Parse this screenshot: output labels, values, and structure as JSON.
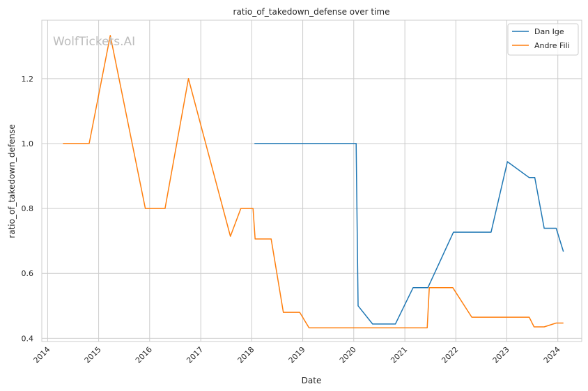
{
  "watermark": "WolfTickets.AI",
  "chart_data": {
    "type": "line",
    "title": "ratio_of_takedown_defense over time",
    "xlabel": "Date",
    "ylabel": "ratio_of_takedown_defense",
    "xlim": [
      "2013-11-20",
      "2024-06-20"
    ],
    "ylim": [
      0.39,
      1.38
    ],
    "x_ticks": [
      "2014-01-01",
      "2015-01-01",
      "2016-01-01",
      "2017-01-01",
      "2018-01-01",
      "2019-01-01",
      "2020-01-01",
      "2021-01-01",
      "2022-01-01",
      "2023-01-01",
      "2024-01-01"
    ],
    "x_tick_labels": [
      "2014",
      "2015",
      "2016",
      "2017",
      "2018",
      "2019",
      "2020",
      "2021",
      "2022",
      "2023",
      "2024"
    ],
    "y_ticks": [
      0.4,
      0.6,
      0.8,
      1.0,
      1.2
    ],
    "y_tick_labels": [
      "0.4",
      "0.6",
      "0.8",
      "1.0",
      "1.2"
    ],
    "grid": true,
    "legend_position": "top-right",
    "series": [
      {
        "name": "Dan Ige",
        "color": "#1f77b4",
        "points": [
          [
            "2018-01-20",
            1.0
          ],
          [
            "2020-01-18",
            1.0
          ],
          [
            "2020-02-01",
            0.5
          ],
          [
            "2020-05-15",
            0.444
          ],
          [
            "2020-10-25",
            0.444
          ],
          [
            "2021-03-01",
            0.556
          ],
          [
            "2021-06-15",
            0.556
          ],
          [
            "2021-12-15",
            0.727
          ],
          [
            "2022-09-10",
            0.727
          ],
          [
            "2023-01-05",
            0.944
          ],
          [
            "2023-06-10",
            0.895
          ],
          [
            "2023-07-20",
            0.895
          ],
          [
            "2023-09-25",
            0.739
          ],
          [
            "2023-12-20",
            0.739
          ],
          [
            "2024-02-10",
            0.667
          ]
        ]
      },
      {
        "name": "Andre Fili",
        "color": "#ff7f0e",
        "points": [
          [
            "2014-04-20",
            1.0
          ],
          [
            "2014-10-25",
            1.0
          ],
          [
            "2015-03-25",
            1.333
          ],
          [
            "2015-12-01",
            0.8
          ],
          [
            "2016-04-20",
            0.8
          ],
          [
            "2016-10-05",
            1.2
          ],
          [
            "2017-08-01",
            0.714
          ],
          [
            "2017-10-15",
            0.8
          ],
          [
            "2018-01-10",
            0.8
          ],
          [
            "2018-01-25",
            0.706
          ],
          [
            "2018-05-20",
            0.706
          ],
          [
            "2018-08-15",
            0.48
          ],
          [
            "2018-12-10",
            0.48
          ],
          [
            "2019-02-15",
            0.432
          ],
          [
            "2021-06-10",
            0.432
          ],
          [
            "2021-06-25",
            0.556
          ],
          [
            "2021-12-10",
            0.556
          ],
          [
            "2022-04-25",
            0.465
          ],
          [
            "2023-06-10",
            0.465
          ],
          [
            "2023-07-15",
            0.435
          ],
          [
            "2023-09-25",
            0.435
          ],
          [
            "2023-12-20",
            0.447
          ],
          [
            "2024-02-10",
            0.447
          ]
        ]
      }
    ]
  }
}
